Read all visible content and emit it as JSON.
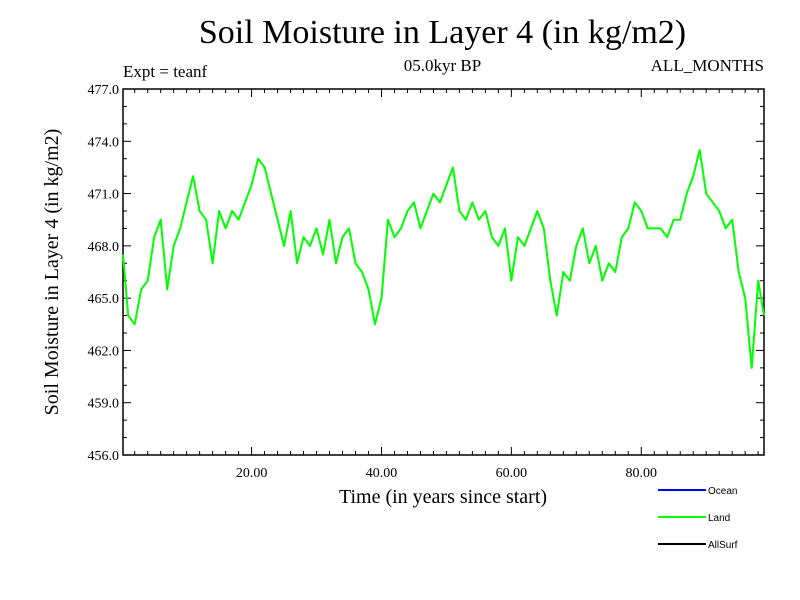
{
  "chart_data": {
    "type": "line",
    "title": "Soil Moisture in Layer 4 (in kg/m2)",
    "subtitle": "05.0kyr BP",
    "experiment": "Expt = teanf",
    "period": "ALL_MONTHS",
    "xlabel": "Time (in years since start)",
    "ylabel": "Soil Moisture in Layer 4 (in kg/m2)",
    "xlim": [
      0.2,
      98.9
    ],
    "ylim": [
      456.0,
      477.0
    ],
    "x_ticks": [
      20,
      40,
      60,
      80
    ],
    "x_tick_labels": [
      "20.00",
      "40.00",
      "60.00",
      "80.00"
    ],
    "y_ticks": [
      456,
      459,
      462,
      465,
      468,
      471,
      474,
      477
    ],
    "y_tick_labels": [
      "456.0",
      "459.0",
      "462.0",
      "465.0",
      "468.0",
      "471.0",
      "474.0",
      "477.0"
    ],
    "grid": false,
    "legend": [
      {
        "name": "Ocean",
        "color": "#0000ff"
      },
      {
        "name": "Land",
        "color": "#00ff00"
      },
      {
        "name": "AllSurf",
        "color": "#000000"
      }
    ],
    "series": [
      {
        "name": "Land",
        "color": "#00ff00",
        "x": [
          0.2,
          1,
          2,
          3,
          4,
          5,
          6,
          7,
          8,
          9,
          10,
          11,
          12,
          13,
          14,
          15,
          16,
          17,
          18,
          19,
          20,
          21,
          22,
          23,
          24,
          25,
          26,
          27,
          28,
          29,
          30,
          31,
          32,
          33,
          34,
          35,
          36,
          37,
          38,
          39,
          40,
          41,
          42,
          43,
          44,
          45,
          46,
          47,
          48,
          49,
          50,
          51,
          52,
          53,
          54,
          55,
          56,
          57,
          58,
          59,
          60,
          61,
          62,
          63,
          64,
          65,
          66,
          67,
          68,
          69,
          70,
          71,
          72,
          73,
          74,
          75,
          76,
          77,
          78,
          79,
          80,
          81,
          82,
          83,
          84,
          85,
          86,
          87,
          88,
          89,
          90,
          91,
          92,
          93,
          94,
          95,
          96,
          97,
          98,
          98.9
        ],
        "values": [
          467.5,
          464.0,
          463.5,
          465.5,
          466.0,
          468.5,
          469.5,
          465.5,
          468.0,
          469.0,
          470.5,
          472.0,
          470.0,
          469.5,
          467.0,
          470.0,
          469.0,
          470.0,
          469.5,
          470.5,
          471.5,
          473.0,
          472.5,
          471.0,
          469.5,
          468.0,
          470.0,
          467.0,
          468.5,
          468.0,
          469.0,
          467.5,
          469.5,
          467.0,
          468.5,
          469.0,
          467.0,
          466.5,
          465.5,
          463.5,
          465.0,
          469.5,
          468.5,
          469.0,
          470.0,
          470.5,
          469.0,
          470.0,
          471.0,
          470.5,
          471.5,
          472.5,
          470.0,
          469.5,
          470.5,
          469.5,
          470.0,
          468.5,
          468.0,
          469.0,
          466.0,
          468.5,
          468.0,
          469.0,
          470.0,
          469.0,
          466.0,
          464.0,
          466.5,
          466.0,
          468.0,
          469.0,
          467.0,
          468.0,
          466.0,
          467.0,
          466.5,
          468.5,
          469.0,
          470.5,
          470.0,
          469.0,
          469.0,
          469.0,
          468.5,
          469.5,
          469.5,
          471.0,
          472.0,
          473.5,
          471.0,
          470.5,
          470.0,
          469.0,
          469.5,
          466.5,
          465.0,
          461.0,
          466.0,
          464.0
        ]
      }
    ]
  }
}
